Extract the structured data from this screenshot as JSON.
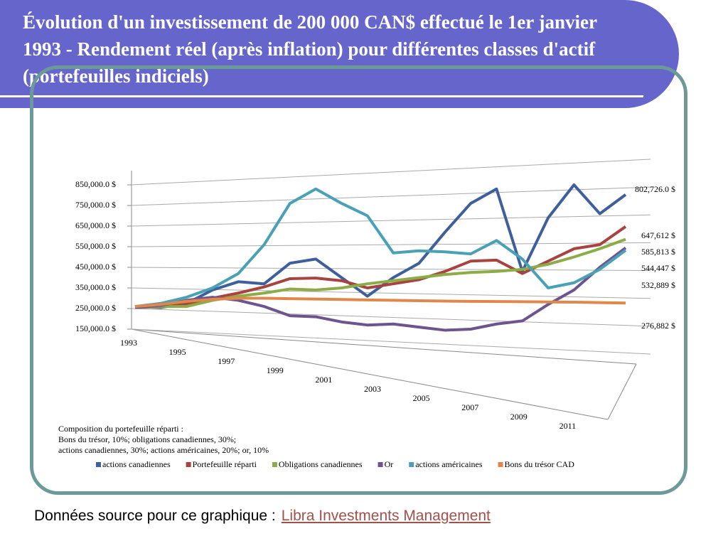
{
  "chart_data": {
    "type": "line",
    "title": "Évolution d'un investissement de 200 000 CAN$ effectué le 1er janvier 1993 - Rendement réel (après inflation) pour différentes classes d'actif (portefeuilles indiciels)",
    "annotations": [
      "Composition du portefeuille réparti :",
      "Bons du trésor, 10%; obligations canadiennes, 30%;",
      "actions canadiennes, 30%; actions américaines, 20%; or, 10%"
    ],
    "categories": [
      "1993",
      null,
      "1995",
      null,
      "1997",
      null,
      "1999",
      null,
      "2001",
      null,
      "2003",
      null,
      "2005",
      null,
      "2007",
      null,
      "2009",
      null,
      "2011",
      null
    ],
    "ylim": [
      150000,
      850000
    ],
    "yticks": [
      {
        "value": 150000,
        "label": "150,000.0 $"
      },
      {
        "value": 250000,
        "label": "250,000.0 $"
      },
      {
        "value": 350000,
        "label": "350,000.0 $"
      },
      {
        "value": 450000,
        "label": "450,000.0 $"
      },
      {
        "value": 550000,
        "label": "550,000.0 $"
      },
      {
        "value": 650000,
        "label": "650,000.0 $"
      },
      {
        "value": 750000,
        "label": "750,000.0 $"
      },
      {
        "value": 850000,
        "label": "850,000.0 $"
      }
    ],
    "grid": true,
    "legend": "bottom",
    "series": [
      {
        "name": "actions canadiennes",
        "color": "#3e5f9c",
        "values": [
          260000,
          255000,
          275000,
          340000,
          380000,
          370000,
          470000,
          490000,
          400000,
          310000,
          400000,
          470000,
          620000,
          760000,
          830000,
          430000,
          690000,
          850000,
          710000,
          802726
        ],
        "value_labels": [
          null,
          null,
          null,
          null,
          null,
          null,
          null,
          null,
          null,
          null,
          null,
          null,
          null,
          null,
          null,
          null,
          null,
          null,
          null,
          "802,726.0 $"
        ]
      },
      {
        "name": "Portefeuille réparti",
        "color": "#a8443f",
        "values": [
          255000,
          258000,
          272000,
          300000,
          325000,
          355000,
          395000,
          398000,
          385000,
          350000,
          370000,
          390000,
          430000,
          480000,
          485000,
          420000,
          480000,
          540000,
          560000,
          647612
        ],
        "value_labels": [
          null,
          null,
          null,
          null,
          null,
          null,
          null,
          null,
          null,
          null,
          null,
          null,
          null,
          null,
          null,
          null,
          null,
          null,
          null,
          "647,612 $"
        ]
      },
      {
        "name": "Obligations canadiennes",
        "color": "#8bac46",
        "values": [
          255000,
          260000,
          260000,
          290000,
          310000,
          325000,
          345000,
          340000,
          350000,
          370000,
          385000,
          400000,
          415000,
          425000,
          430000,
          440000,
          465000,
          500000,
          540000,
          585813
        ],
        "value_labels": [
          null,
          null,
          null,
          null,
          null,
          null,
          null,
          null,
          null,
          null,
          null,
          null,
          null,
          null,
          null,
          null,
          null,
          null,
          null,
          "585,813 $"
        ]
      },
      {
        "name": "Or",
        "color": "#6e548f",
        "values": [
          255000,
          265000,
          290000,
          305000,
          290000,
          260000,
          215000,
          210000,
          185000,
          170000,
          175000,
          160000,
          145000,
          150000,
          175000,
          190000,
          270000,
          340000,
          450000,
          544447
        ],
        "value_labels": [
          null,
          null,
          null,
          null,
          null,
          null,
          null,
          null,
          null,
          null,
          null,
          null,
          null,
          null,
          null,
          null,
          null,
          null,
          null,
          "544,447 $"
        ]
      },
      {
        "name": "actions américaines",
        "color": "#4aa0b5",
        "values": [
          260000,
          275000,
          305000,
          350000,
          420000,
          560000,
          760000,
          830000,
          760000,
          700000,
          520000,
          530000,
          525000,
          515000,
          580000,
          490000,
          350000,
          375000,
          440000,
          532889
        ],
        "value_labels": [
          null,
          null,
          null,
          null,
          null,
          null,
          null,
          null,
          null,
          null,
          null,
          null,
          null,
          null,
          null,
          null,
          null,
          null,
          null,
          "532,889 $"
        ]
      },
      {
        "name": "Bons du trésor CAD",
        "color": "#e0874b",
        "values": [
          260000,
          270000,
          285000,
          295000,
          300000,
          300000,
          298000,
          296000,
          294000,
          292000,
          290000,
          288000,
          286000,
          285000,
          284000,
          283000,
          282000,
          281000,
          279000,
          276882
        ],
        "value_labels": [
          null,
          null,
          null,
          null,
          null,
          null,
          null,
          null,
          null,
          null,
          null,
          null,
          null,
          null,
          null,
          null,
          null,
          null,
          null,
          "276,882 $"
        ]
      }
    ]
  },
  "footer": {
    "text": "Données source pour ce graphique :",
    "link": "Libra Investments Management"
  }
}
